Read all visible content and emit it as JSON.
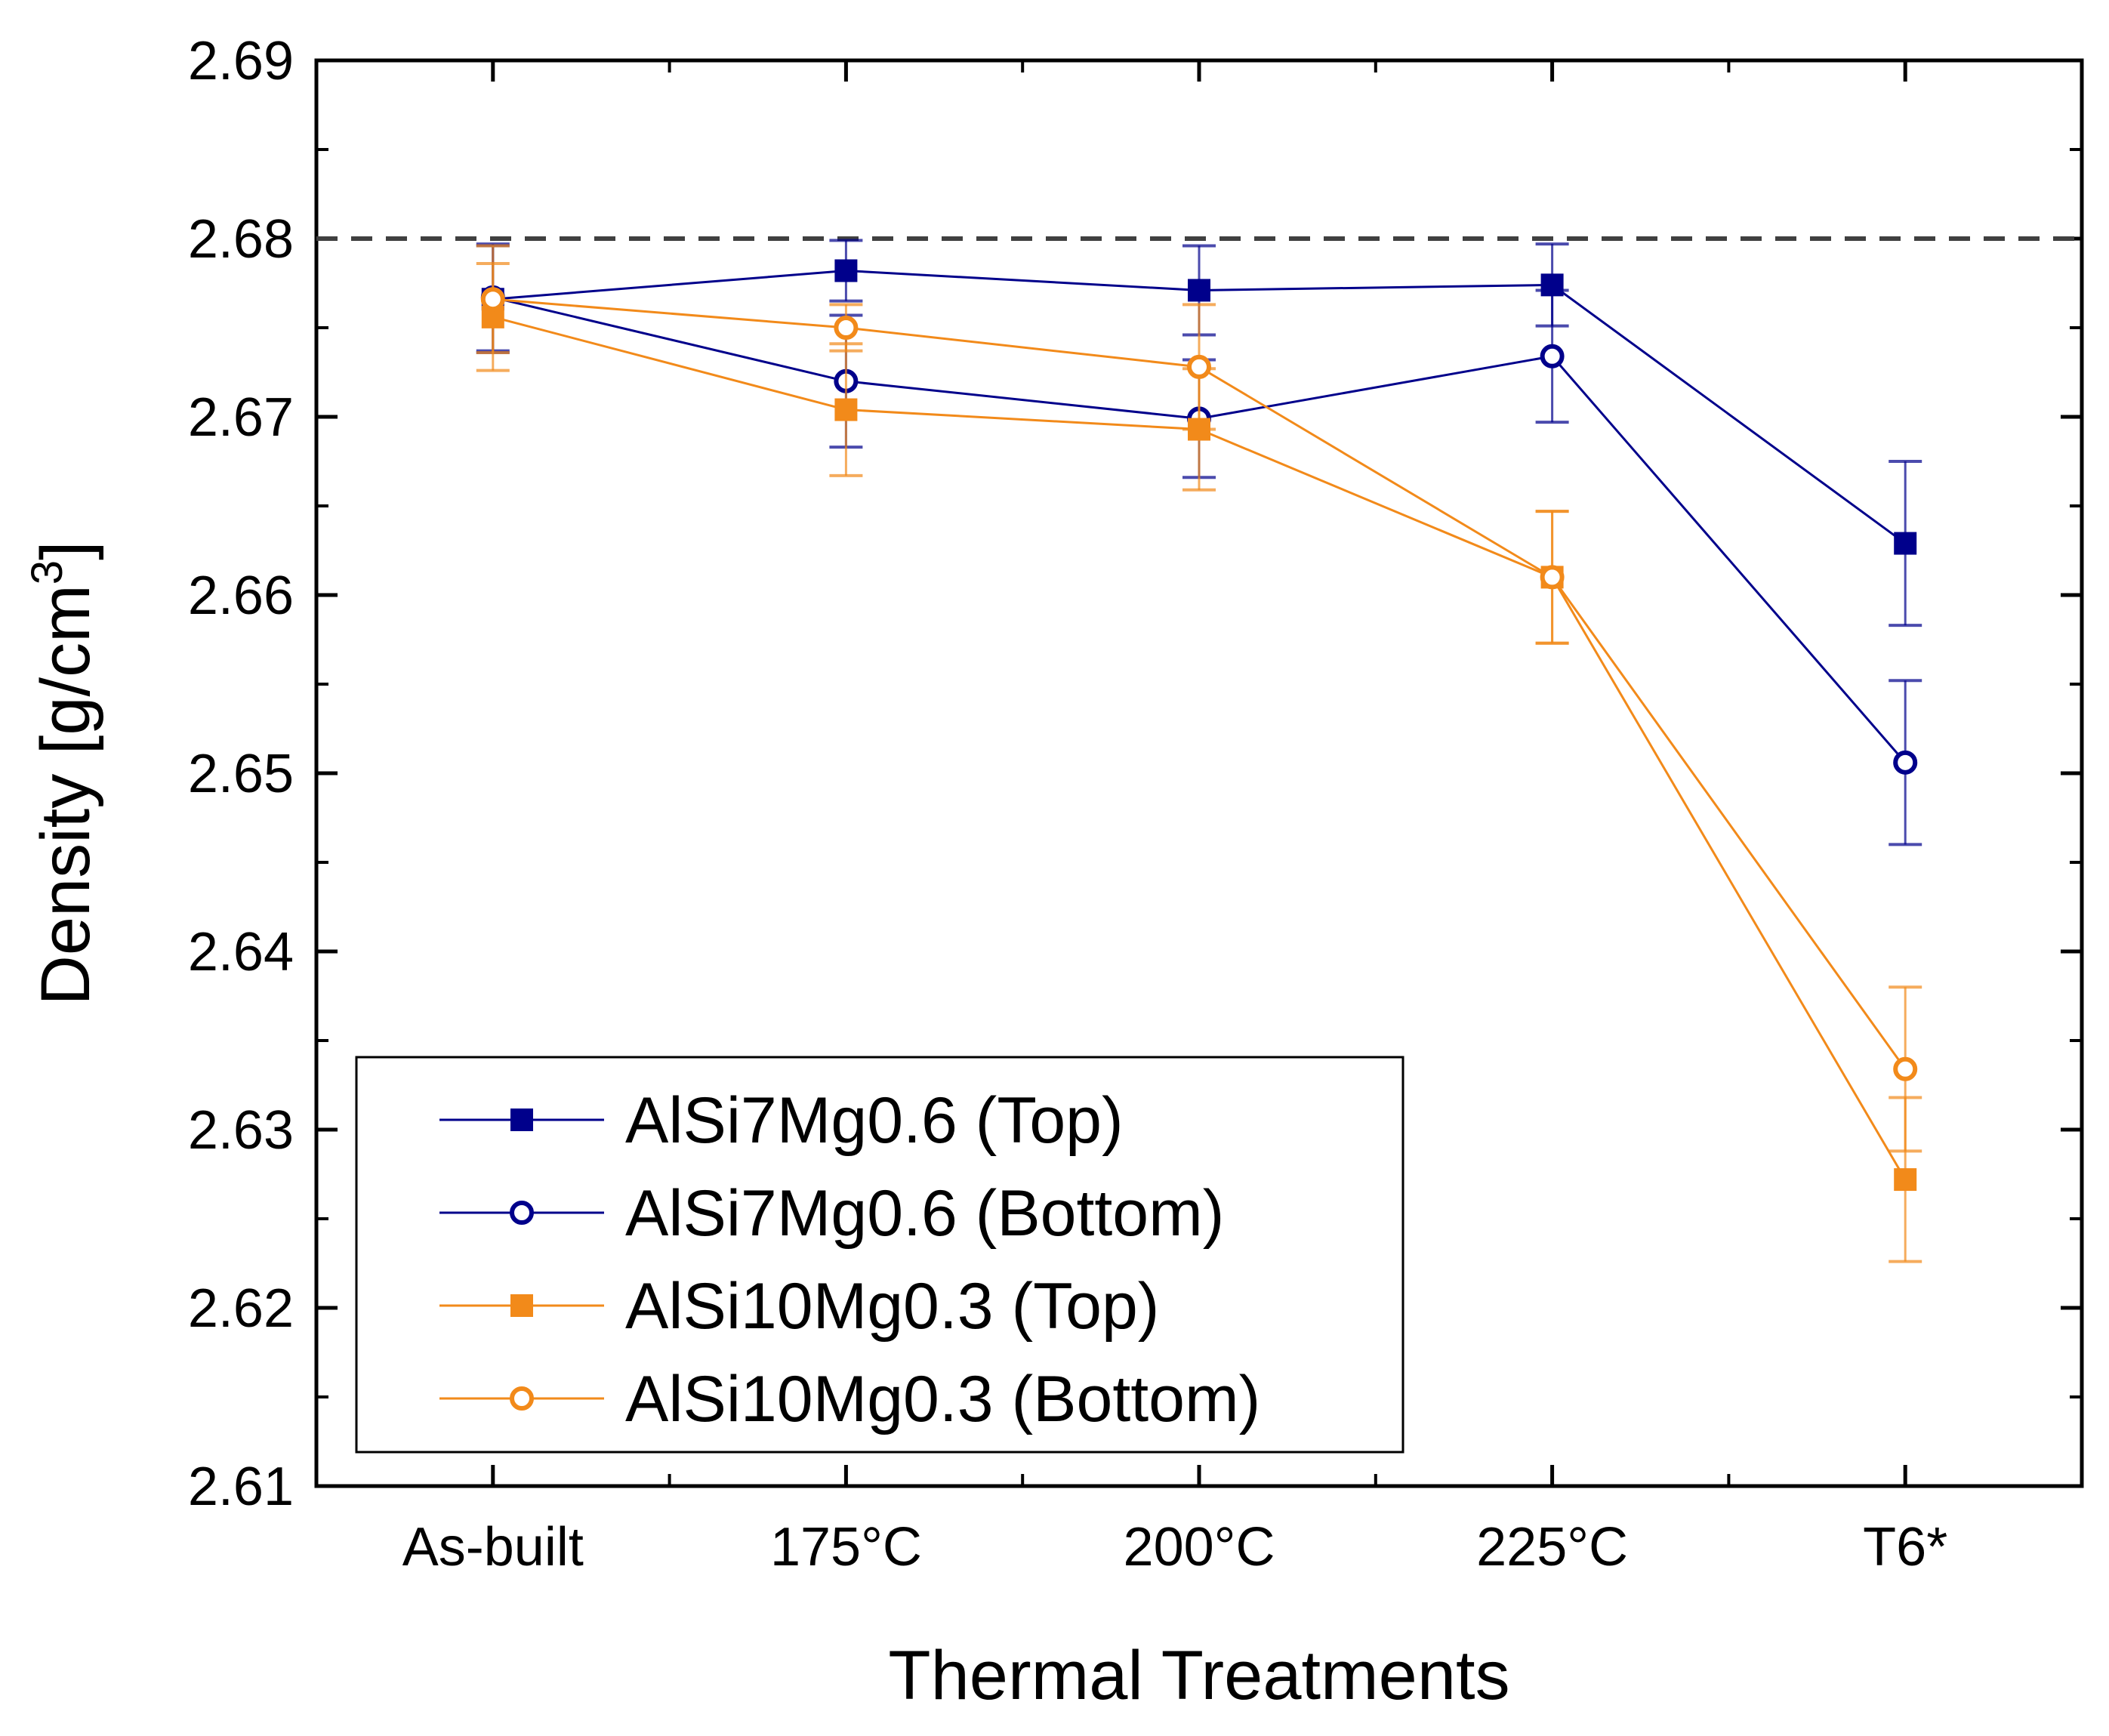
{
  "chart_data": {
    "type": "line",
    "title": "",
    "xlabel": "Thermal Treatments",
    "ylabel": "Density [g/cm3]",
    "ylabel_main": "Density [g/cm",
    "ylabel_sup": "3",
    "ylabel_end": "]",
    "categories": [
      "As-built",
      "175°C",
      "200°C",
      "225°C",
      "T6*"
    ],
    "ylim": [
      2.61,
      2.69
    ],
    "yticks": [
      "2.61",
      "2.62",
      "2.63",
      "2.64",
      "2.65",
      "2.66",
      "2.67",
      "2.68",
      "2.69"
    ],
    "reference_line": {
      "y": 2.68,
      "style": "dashed",
      "color": "#404040"
    },
    "grid": false,
    "legend_position": "bottom-left",
    "series": [
      {
        "name": "AlSi7Mg0.6 (Top)",
        "color": "#00008b",
        "marker": "filled-square",
        "values": [
          2.6766,
          2.6782,
          2.6771,
          2.6774,
          2.6629
        ],
        "errors": [
          0.003,
          0.0017,
          0.0025,
          0.0023,
          0.0046
        ]
      },
      {
        "name": "AlSi7Mg0.6 (Bottom)",
        "color": "#00008b",
        "marker": "open-circle",
        "values": [
          2.6767,
          2.672,
          2.6699,
          2.6734,
          2.6506
        ],
        "errors": [
          0.003,
          0.0037,
          0.0033,
          0.0037,
          0.0046
        ]
      },
      {
        "name": "AlSi10Mg0.3 (Top)",
        "color": "#f28a1a",
        "marker": "filled-square",
        "values": [
          2.6756,
          2.6704,
          2.6693,
          2.661,
          2.6272
        ],
        "errors": [
          0.003,
          0.0037,
          0.0034,
          0.0037,
          0.0046
        ]
      },
      {
        "name": "AlSi10Mg0.3 (Bottom)",
        "color": "#f28a1a",
        "marker": "open-circle",
        "values": [
          2.6766,
          2.675,
          2.6728,
          2.661,
          2.6334
        ],
        "errors": [
          0.003,
          0.0013,
          0.0035,
          0.0037,
          0.0046
        ]
      }
    ]
  }
}
